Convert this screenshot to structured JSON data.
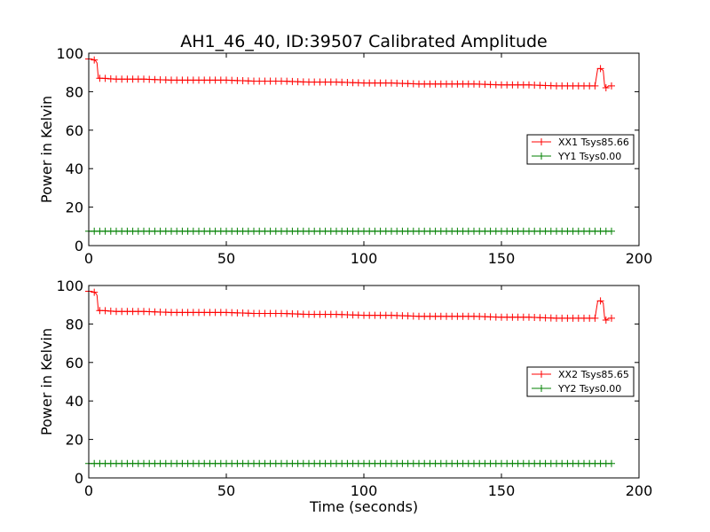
{
  "figure": {
    "title": "AH1_46_40, ID:39507 Calibrated Amplitude",
    "xlabel": "Time (seconds)"
  },
  "chart_data": [
    {
      "type": "line",
      "ylabel": "Power in Kelvin",
      "xlabel": "",
      "xlim": [
        0,
        200
      ],
      "ylim": [
        0,
        100
      ],
      "xticks": [
        "0",
        "50",
        "100",
        "150",
        "200"
      ],
      "yticks": [
        "0",
        "20",
        "40",
        "60",
        "80",
        "100"
      ],
      "grid": false,
      "legend_position": "right",
      "series": [
        {
          "name": "XX1 Tsys85.66",
          "color": "#ff0000",
          "marker": "+",
          "x": [
            0,
            1,
            2,
            2.5,
            3,
            3.5,
            5,
            10,
            20,
            30,
            40,
            50,
            60,
            70,
            80,
            90,
            100,
            110,
            120,
            130,
            140,
            150,
            160,
            170,
            180,
            184,
            185,
            186,
            187,
            187.5,
            188,
            189,
            190
          ],
          "values": [
            97,
            97,
            96.5,
            96,
            95,
            87,
            87,
            86.5,
            86.5,
            86,
            86,
            86,
            85.5,
            85.5,
            85,
            85,
            84.5,
            84.5,
            84,
            84,
            84,
            83.5,
            83.5,
            83,
            83,
            83,
            92,
            92,
            91,
            83,
            82,
            83,
            83
          ]
        },
        {
          "name": "YY1 Tsys0.00",
          "color": "#008000",
          "marker": "+",
          "x": [
            0,
            190
          ],
          "values": [
            7.5,
            7.5
          ]
        }
      ]
    },
    {
      "type": "line",
      "ylabel": "Power in Kelvin",
      "xlabel": "Time (seconds)",
      "xlim": [
        0,
        200
      ],
      "ylim": [
        0,
        100
      ],
      "xticks": [
        "0",
        "50",
        "100",
        "150",
        "200"
      ],
      "yticks": [
        "0",
        "20",
        "40",
        "60",
        "80",
        "100"
      ],
      "grid": false,
      "legend_position": "right",
      "series": [
        {
          "name": "XX2 Tsys85.65",
          "color": "#ff0000",
          "marker": "+",
          "x": [
            0,
            1,
            2,
            2.5,
            3,
            3.5,
            5,
            10,
            20,
            30,
            40,
            50,
            60,
            70,
            80,
            90,
            100,
            110,
            120,
            130,
            140,
            150,
            160,
            170,
            180,
            184,
            185,
            186,
            187,
            187.5,
            188,
            189,
            190
          ],
          "values": [
            97,
            97,
            96.5,
            96,
            95,
            87,
            87,
            86.5,
            86.5,
            86,
            86,
            86,
            85.5,
            85.5,
            85,
            85,
            84.5,
            84.5,
            84,
            84,
            84,
            83.5,
            83.5,
            83,
            83,
            83,
            92,
            92,
            91,
            83,
            82,
            83,
            83
          ]
        },
        {
          "name": "YY2 Tsys0.00",
          "color": "#008000",
          "marker": "+",
          "x": [
            0,
            190
          ],
          "values": [
            7.5,
            7.5
          ]
        }
      ]
    }
  ]
}
